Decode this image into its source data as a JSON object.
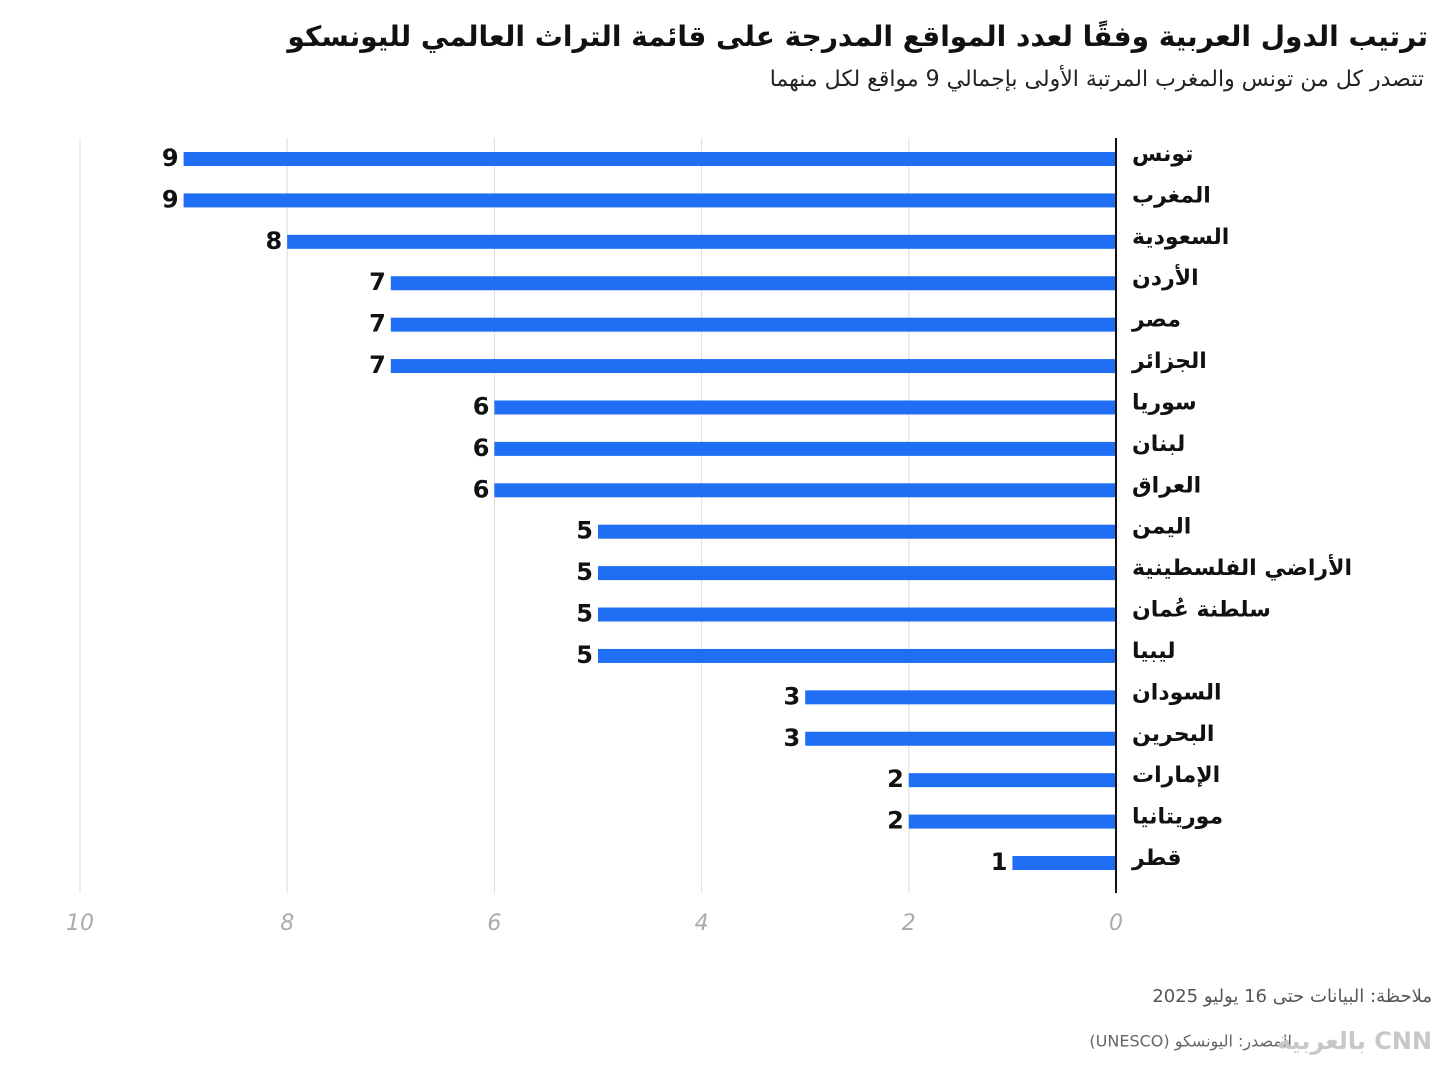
{
  "chart_data": {
    "type": "bar",
    "orientation": "horizontal",
    "title": "ترتيب الدول العربية وفقًا لعدد المواقع المدرجة على قائمة التراث العالمي لليونسكو",
    "subtitle": "تتصدر كل من تونس والمغرب المرتبة الأولى بإجمالي 9 مواقع لكل منهما",
    "categories": [
      "تونس",
      "المغرب",
      "السعودية",
      "الأردن",
      "مصر",
      "الجزائر",
      "سوريا",
      "لبنان",
      "العراق",
      "اليمن",
      "الأراضي الفلسطينية",
      "سلطنة عُمان",
      "ليبيا",
      "السودان",
      "البحرين",
      "الإمارات",
      "موريتانيا",
      "قطر"
    ],
    "values": [
      9,
      9,
      8,
      7,
      7,
      7,
      6,
      6,
      6,
      5,
      5,
      5,
      5,
      3,
      3,
      2,
      2,
      1
    ],
    "color": "#1f6ef3",
    "xlim": [
      0,
      10
    ],
    "xticks": [
      10,
      8,
      6,
      4,
      2,
      0
    ],
    "grid": true,
    "note": "ملاحظة: البيانات حتى 16 يوليو 2025",
    "source": "المصدر: اليونسكو (UNESCO)"
  },
  "logo": "CNN بالعربية"
}
